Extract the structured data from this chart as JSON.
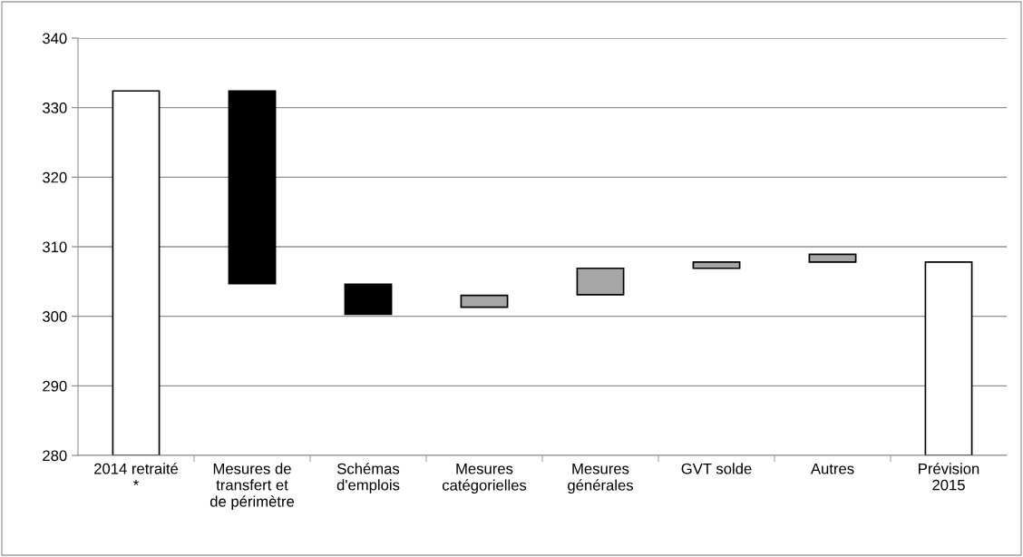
{
  "chart_data": {
    "type": "bar",
    "categories": [
      "2014 retraité\n*",
      "Mesures de\ntransfert et\nde périmètre",
      "Schémas\nd'emplois",
      "Mesures\ncatégorielles",
      "Mesures\ngénérales",
      "GVT solde",
      "Autres",
      "Prévision\n2015"
    ],
    "values": [
      52.4,
      27.7,
      4.3,
      1.7,
      3.8,
      0.9,
      1.1,
      27.8
    ],
    "base": [
      280,
      304.7,
      300.3,
      301.3,
      303.1,
      306.9,
      307.8,
      280
    ],
    "colors": [
      "#ffffff",
      "#000000",
      "#000000",
      "#a6a6a6",
      "#a6a6a6",
      "#a6a6a6",
      "#a6a6a6",
      "#ffffff"
    ],
    "ylim": [
      280,
      340
    ],
    "yticks": [
      280,
      290,
      300,
      310,
      320,
      330,
      340
    ],
    "grid": "y",
    "legend": false
  }
}
